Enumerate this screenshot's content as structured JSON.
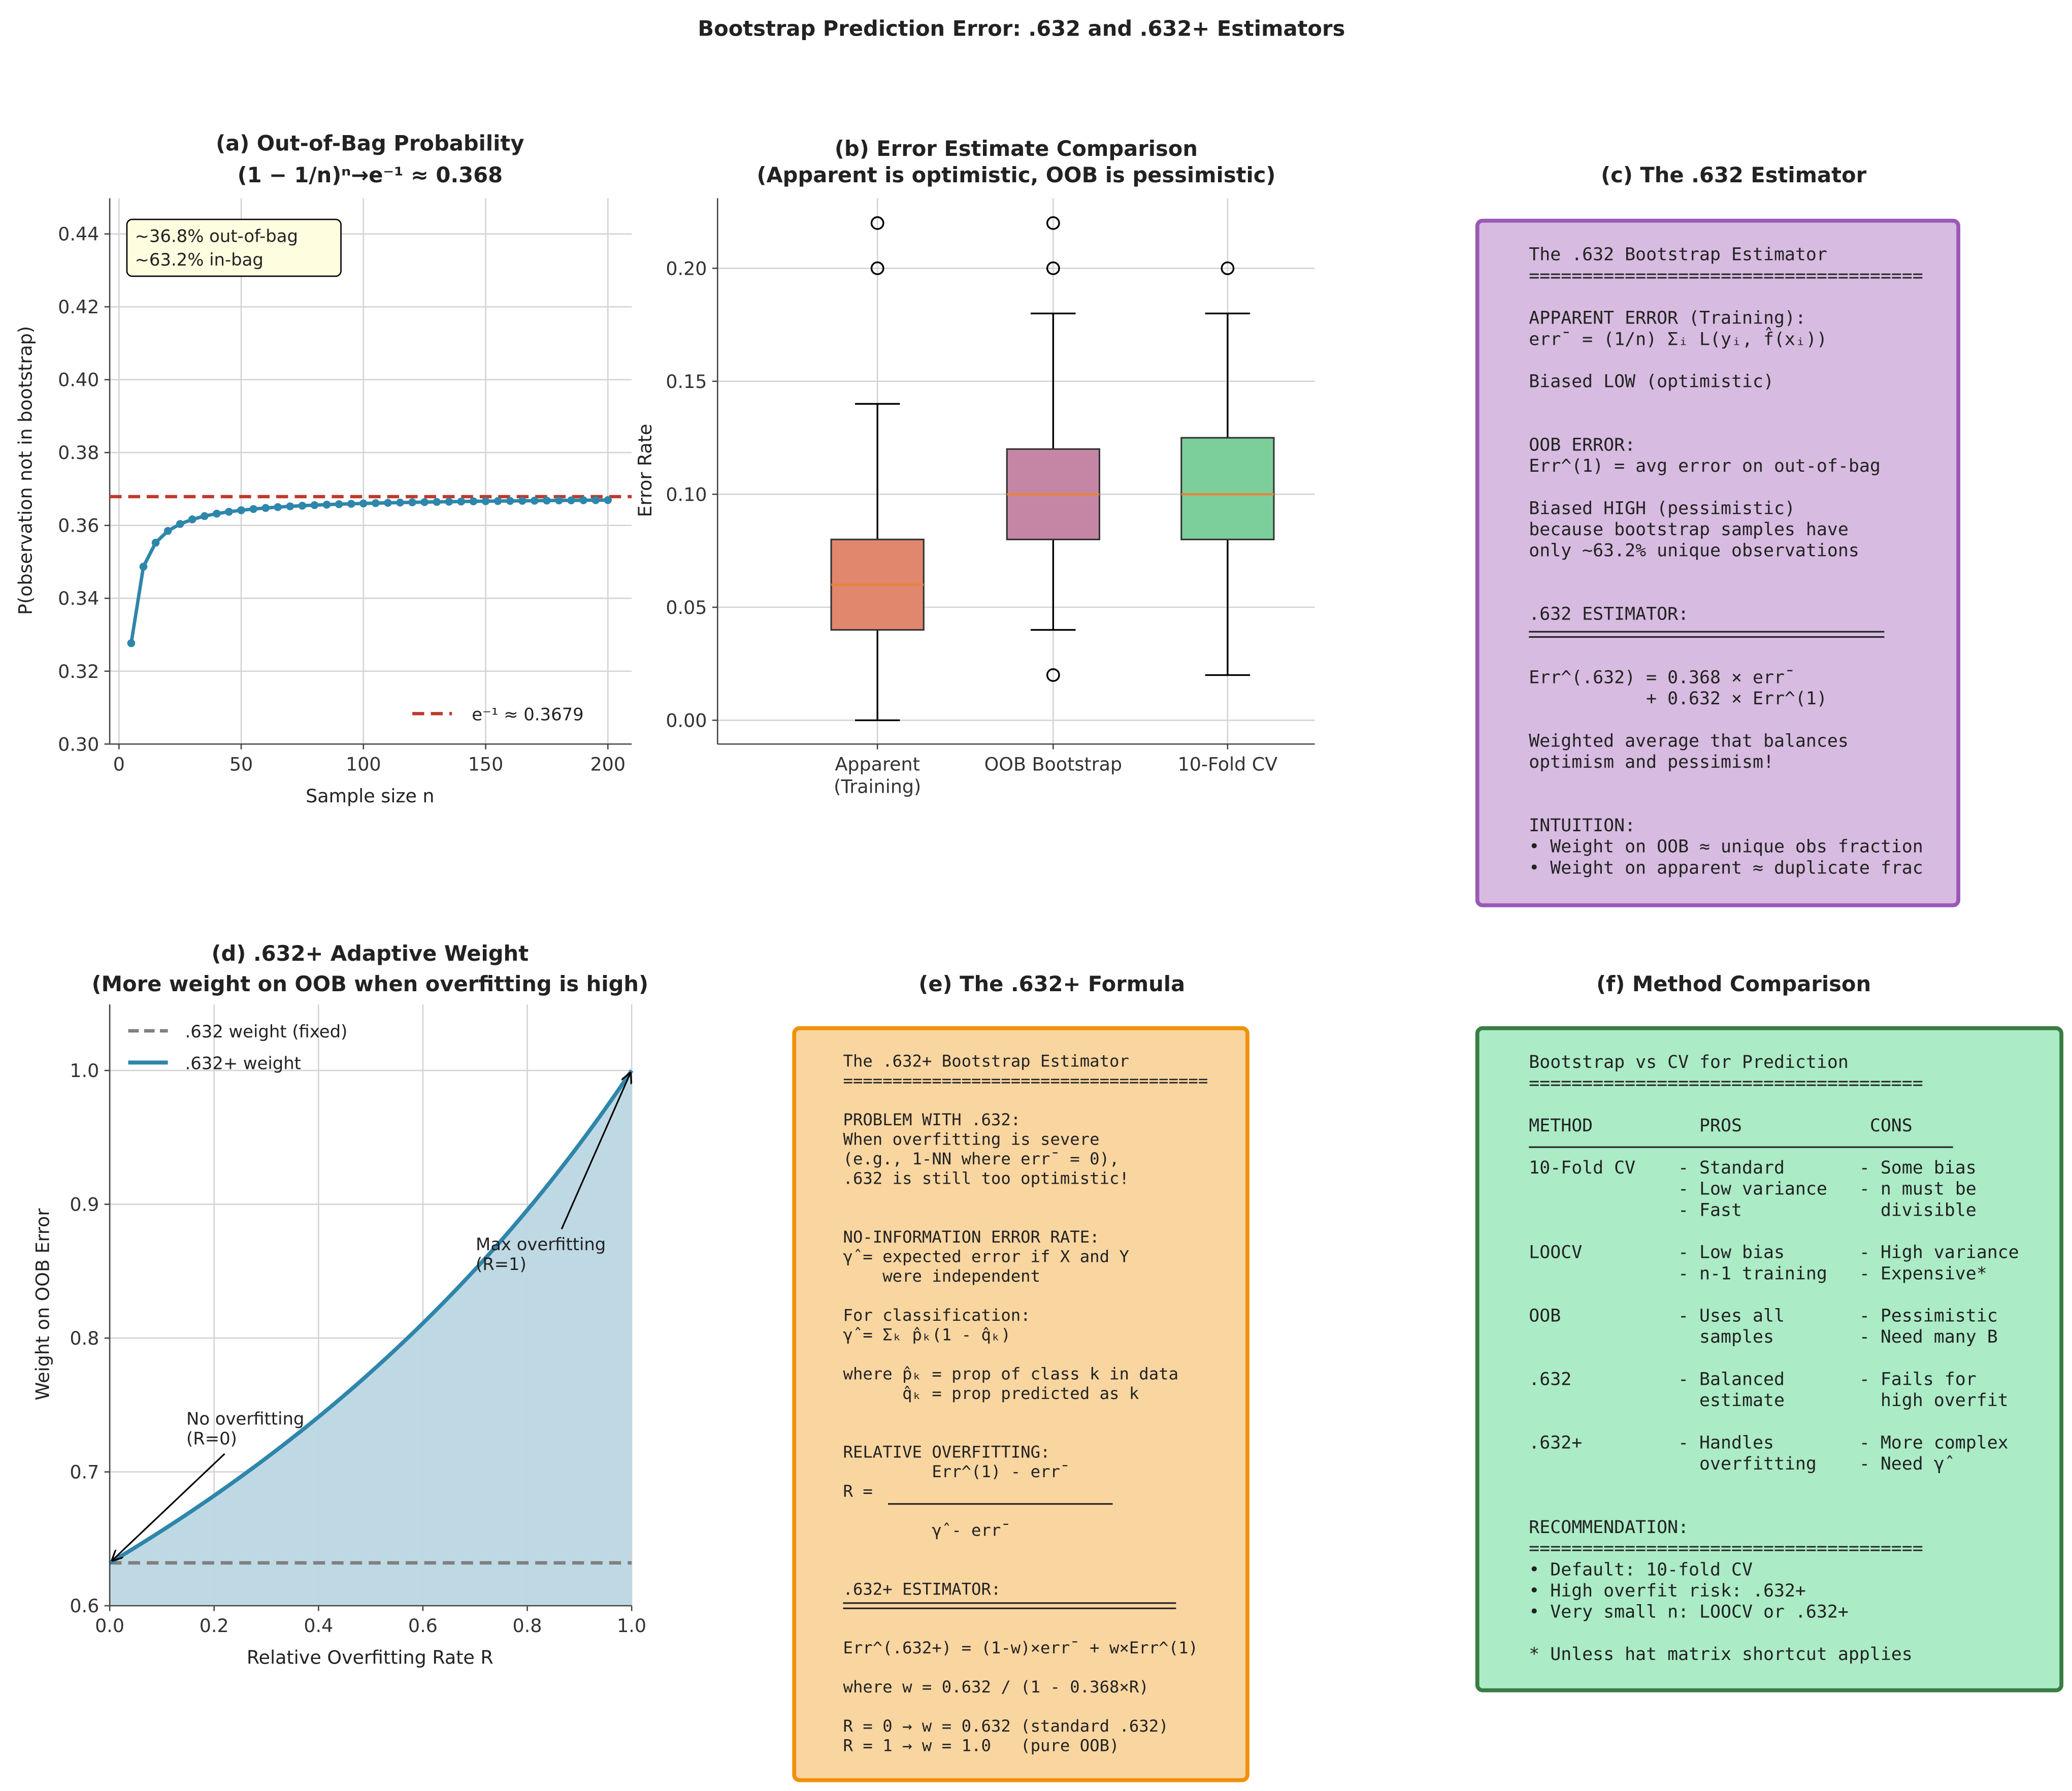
{
  "figure_title": "Bootstrap Prediction Error: .632 and .632+ Estimators",
  "colors": {
    "oob_line": "#2e86ab",
    "e_inv_line": "#c0392b",
    "apparent_box": "#e0876d",
    "oob_box": "#c586a5",
    "cv_box": "#7ccf9b",
    "median": "#e8833a",
    "panel_c_fill": "#d7bbe0",
    "panel_c_border": "#9b59b6",
    "panel_e_fill": "#f9d5a0",
    "panel_e_border": "#f0900a",
    "panel_f_fill": "#abebc6",
    "panel_f_border": "#3a7d44",
    "weight_fill": "#bcd7e3",
    "fixed_weight": "#808080"
  },
  "chart_data": [
    {
      "id": "a",
      "type": "line",
      "title": "(a) Out-of-Bag Probability",
      "subtitle": "(1 − 1/n)ⁿ→e⁻¹ ≈ 0.368",
      "xlabel": "Sample size n",
      "ylabel": "P(observation not in bootstrap)",
      "xlim": [
        -4,
        210
      ],
      "ylim": [
        0.3,
        0.45
      ],
      "xticks": [
        "0",
        "50",
        "100",
        "150",
        "200"
      ],
      "xtick_values": [
        0,
        50,
        100,
        150,
        200
      ],
      "yticks": [
        "0.30",
        "0.32",
        "0.34",
        "0.36",
        "0.38",
        "0.40",
        "0.42",
        "0.44"
      ],
      "ytick_values": [
        0.3,
        0.32,
        0.34,
        0.36,
        0.38,
        0.4,
        0.42,
        0.44
      ],
      "grid": true,
      "series": [
        {
          "name": "(1-1/n)^n",
          "x_start": 5,
          "x_step": 5,
          "x_end": 200,
          "formula": "(1-1/n)^n"
        }
      ],
      "hline": {
        "value": 0.3679,
        "label": "e⁻¹ ≈ 0.3679"
      },
      "legend_placement": "bottom-right",
      "annotation": [
        "~36.8% out-of-bag",
        "~63.2% in-bag"
      ]
    },
    {
      "id": "b",
      "type": "box",
      "title": "(b) Error Estimate Comparison",
      "subtitle": "(Apparent is optimistic, OOB is pessimistic)",
      "ylabel": "Error Rate",
      "ylim": [
        -0.01,
        0.23
      ],
      "yticks": [
        "0.00",
        "0.05",
        "0.10",
        "0.15",
        "0.20"
      ],
      "ytick_values": [
        0,
        0.05,
        0.1,
        0.15,
        0.2
      ],
      "grid": true,
      "categories": [
        "Apparent\n(Training)",
        "OOB Bootstrap",
        "10-Fold CV"
      ],
      "boxes": [
        {
          "whislo": 0.0,
          "q1": 0.04,
          "med": 0.06,
          "q3": 0.08,
          "whishi": 0.14,
          "fliers": [
            0.2,
            0.22
          ]
        },
        {
          "whislo": 0.04,
          "q1": 0.08,
          "med": 0.1,
          "q3": 0.12,
          "whishi": 0.18,
          "fliers": [
            0.02,
            0.2,
            0.22
          ]
        },
        {
          "whislo": 0.02,
          "q1": 0.08,
          "med": 0.1,
          "q3": 0.125,
          "whishi": 0.18,
          "fliers": [
            0.2
          ]
        }
      ]
    },
    {
      "id": "d",
      "type": "area",
      "title": "(d) .632+ Adaptive Weight",
      "subtitle": "(More weight on OOB when overfitting is high)",
      "xlabel": "Relative Overfitting Rate R",
      "ylabel": "Weight on OOB Error",
      "xlim": [
        0,
        1
      ],
      "ylim": [
        0.6,
        1.05
      ],
      "xticks": [
        "0.0",
        "0.2",
        "0.4",
        "0.6",
        "0.8",
        "1.0"
      ],
      "xtick_values": [
        0,
        0.2,
        0.4,
        0.6,
        0.8,
        1.0
      ],
      "yticks": [
        "0.6",
        "0.7",
        "0.8",
        "0.9",
        "1.0"
      ],
      "ytick_values": [
        0.6,
        0.7,
        0.8,
        0.9,
        1.0
      ],
      "grid": true,
      "series": [
        {
          "name": ".632 weight (fixed)",
          "value": 0.632
        },
        {
          "name": ".632+ weight",
          "formula": "0.632/(1-0.368R)",
          "y_at_0": 0.632,
          "y_at_1": 1.0
        }
      ],
      "legend_placement": "top-left",
      "annotations": [
        {
          "lines": [
            "No overfitting",
            "(R=0)"
          ],
          "x": 0.0,
          "y": 0.632
        },
        {
          "lines": [
            "Max overfitting",
            "(R=1)"
          ],
          "x": 1.0,
          "y": 1.0
        }
      ]
    }
  ],
  "panels": {
    "c": {
      "title": "(c) The .632 Estimator",
      "lines": [
        "The .632 Bootstrap Estimator",
        "=====================================",
        "",
        "APPARENT ERROR (Training):",
        "err¯ = (1/n) Σᵢ L(yᵢ, f̂(xᵢ))",
        "",
        "Biased LOW (optimistic)",
        "",
        "",
        "OOB ERROR:",
        "Err^(1) = avg error on out-of-bag",
        "",
        "Biased HIGH (pessimistic)",
        "because bootstrap samples have",
        "only ~63.2% unique observations",
        "",
        "",
        ".632 ESTIMATOR:",
        "",
        "",
        "Err^(.632) = 0.368 × err¯",
        "           + 0.632 × Err^(1)",
        "",
        "Weighted average that balances",
        "optimism and pessimism!",
        "",
        "",
        "INTUITION:",
        "• Weight on OOB ≈ unique obs fraction",
        "• Weight on apparent ≈ duplicate frac"
      ]
    },
    "e": {
      "title": "(e) The .632+ Formula",
      "lines": [
        "The .632+ Bootstrap Estimator",
        "=====================================",
        "",
        "PROBLEM WITH .632:",
        "When overfitting is severe",
        "(e.g., 1-NN where err¯ = 0),",
        ".632 is still too optimistic!",
        "",
        "",
        "NO-INFORMATION ERROR RATE:",
        "γ̂ = expected error if X and Y",
        "    were independent",
        "",
        "For classification:",
        "γ̂ = Σₖ p̂ₖ(1 - q̂ₖ)",
        "",
        "where p̂ₖ = prop of class k in data",
        "      q̂ₖ = prop predicted as k",
        "",
        "",
        "RELATIVE OVERFITTING:",
        "         Err^(1) - err¯",
        "R =",
        "",
        "         γ̂ - err¯",
        "",
        "",
        ".632+ ESTIMATOR:",
        "",
        "",
        "Err^(.632+) = (1-w)×err¯ + w×Err^(1)",
        "",
        "where w = 0.632 / (1 - 0.368×R)",
        "",
        "R = 0 → w = 0.632 (standard .632)",
        "R = 1 → w = 1.0   (pure OOB)"
      ]
    },
    "f": {
      "title": "(f) Method Comparison",
      "lines": [
        "Bootstrap vs CV for Prediction",
        "=====================================",
        "",
        "METHOD          PROS            CONS",
        "",
        "10-Fold CV    - Standard       - Some bias",
        "              - Low variance   - n must be",
        "              - Fast             divisible",
        "",
        "LOOCV         - Low bias       - High variance",
        "              - n-1 training   - Expensive*",
        "",
        "OOB           - Uses all       - Pessimistic",
        "                samples        - Need many B",
        "",
        ".632          - Balanced       - Fails for",
        "                estimate         high overfit",
        "",
        ".632+         - Handles        - More complex",
        "                overfitting    - Need γ̂",
        "",
        "",
        "RECOMMENDATION:",
        "=====================================",
        "• Default: 10-fold CV",
        "• High overfit risk: .632+",
        "• Very small n: LOOCV or .632+",
        "",
        "* Unless hat matrix shortcut applies"
      ]
    }
  }
}
